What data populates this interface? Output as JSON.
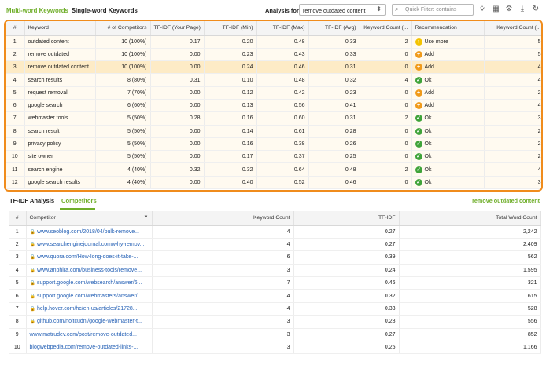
{
  "topbar": {
    "tab_multi": "Multi-word Keywords",
    "tab_single": "Single-word Keywords",
    "analysis_label": "Analysis for:",
    "analysis_value": "remove outdated content",
    "filter_placeholder": "Quick Filter: contains",
    "icons": [
      "filter-icon",
      "grid-icon",
      "gear-icon",
      "download-icon",
      "refresh-icon"
    ]
  },
  "keywords_table": {
    "columns": [
      "#",
      "Keyword",
      "# of Competitors",
      "TF-IDF (Your Page)",
      "TF-IDF (Min)",
      "TF-IDF (Max)",
      "TF-IDF (Avg)",
      "Keyword Count (...",
      "Recommendation",
      "Keyword Count (..."
    ],
    "rows": [
      {
        "n": "1",
        "keyword": "outdated content",
        "competitors": "10 (100%)",
        "your": "0.17",
        "min": "0.20",
        "max": "0.48",
        "avg": "0.33",
        "kc": "2",
        "rec": "Use more",
        "rec_type": "more",
        "kc2": "5"
      },
      {
        "n": "2",
        "keyword": "remove outdated",
        "competitors": "10 (100%)",
        "your": "0.00",
        "min": "0.23",
        "max": "0.43",
        "avg": "0.33",
        "kc": "0",
        "rec": "Add",
        "rec_type": "add",
        "kc2": "5"
      },
      {
        "n": "3",
        "keyword": "remove outdated content",
        "competitors": "10 (100%)",
        "your": "0.00",
        "min": "0.24",
        "max": "0.46",
        "avg": "0.31",
        "kc": "0",
        "rec": "Add",
        "rec_type": "add",
        "kc2": "4"
      },
      {
        "n": "4",
        "keyword": "search results",
        "competitors": "8 (80%)",
        "your": "0.31",
        "min": "0.10",
        "max": "0.48",
        "avg": "0.32",
        "kc": "4",
        "rec": "Ok",
        "rec_type": "ok",
        "kc2": "4"
      },
      {
        "n": "5",
        "keyword": "request removal",
        "competitors": "7 (70%)",
        "your": "0.00",
        "min": "0.12",
        "max": "0.42",
        "avg": "0.23",
        "kc": "0",
        "rec": "Add",
        "rec_type": "add",
        "kc2": "2"
      },
      {
        "n": "6",
        "keyword": "google search",
        "competitors": "6 (60%)",
        "your": "0.00",
        "min": "0.13",
        "max": "0.56",
        "avg": "0.41",
        "kc": "0",
        "rec": "Add",
        "rec_type": "add",
        "kc2": "4"
      },
      {
        "n": "7",
        "keyword": "webmaster tools",
        "competitors": "5 (50%)",
        "your": "0.28",
        "min": "0.16",
        "max": "0.60",
        "avg": "0.31",
        "kc": "2",
        "rec": "Ok",
        "rec_type": "ok",
        "kc2": "3"
      },
      {
        "n": "8",
        "keyword": "search result",
        "competitors": "5 (50%)",
        "your": "0.00",
        "min": "0.14",
        "max": "0.61",
        "avg": "0.28",
        "kc": "0",
        "rec": "Ok",
        "rec_type": "ok",
        "kc2": "2"
      },
      {
        "n": "9",
        "keyword": "privacy policy",
        "competitors": "5 (50%)",
        "your": "0.00",
        "min": "0.16",
        "max": "0.38",
        "avg": "0.26",
        "kc": "0",
        "rec": "Ok",
        "rec_type": "ok",
        "kc2": "2"
      },
      {
        "n": "10",
        "keyword": "site owner",
        "competitors": "5 (50%)",
        "your": "0.00",
        "min": "0.17",
        "max": "0.37",
        "avg": "0.25",
        "kc": "0",
        "rec": "Ok",
        "rec_type": "ok",
        "kc2": "2"
      },
      {
        "n": "11",
        "keyword": "search engine",
        "competitors": "4 (40%)",
        "your": "0.32",
        "min": "0.32",
        "max": "0.64",
        "avg": "0.48",
        "kc": "2",
        "rec": "Ok",
        "rec_type": "ok",
        "kc2": "4"
      },
      {
        "n": "12",
        "keyword": "google search results",
        "competitors": "4 (40%)",
        "your": "0.00",
        "min": "0.40",
        "max": "0.52",
        "avg": "0.46",
        "kc": "0",
        "rec": "Ok",
        "rec_type": "ok",
        "kc2": "3"
      }
    ]
  },
  "lower": {
    "tab_tfidf": "TF-IDF Analysis",
    "tab_competitors": "Competitors",
    "keyword": "remove outdated content",
    "columns": [
      "#",
      "Competitor",
      "Keyword Count",
      "TF-IDF",
      "Total Word Count"
    ],
    "rows": [
      {
        "n": "1",
        "url": "www.seoblog.com/2018/04/bulk-remove...",
        "secure": true,
        "kc": "4",
        "tfidf": "0.27",
        "twc": "2,242"
      },
      {
        "n": "2",
        "url": "www.searchenginejournal.com/why-remov...",
        "secure": true,
        "kc": "4",
        "tfidf": "0.27",
        "twc": "2,409"
      },
      {
        "n": "3",
        "url": "www.quora.com/How-long-does-it-take-...",
        "secure": true,
        "kc": "6",
        "tfidf": "0.39",
        "twc": "562"
      },
      {
        "n": "4",
        "url": "www.anphira.com/business-tools/remove...",
        "secure": true,
        "kc": "3",
        "tfidf": "0.24",
        "twc": "1,595"
      },
      {
        "n": "5",
        "url": "support.google.com/websearch/answer/6...",
        "secure": true,
        "kc": "7",
        "tfidf": "0.46",
        "twc": "321"
      },
      {
        "n": "6",
        "url": "support.google.com/webmasters/answer/...",
        "secure": true,
        "kc": "4",
        "tfidf": "0.32",
        "twc": "615"
      },
      {
        "n": "7",
        "url": "help.hover.com/hc/en-us/articles/21728...",
        "secure": true,
        "kc": "4",
        "tfidf": "0.33",
        "twc": "528"
      },
      {
        "n": "8",
        "url": "github.com/noitcudni/google-webmaster-t...",
        "secure": true,
        "kc": "3",
        "tfidf": "0.28",
        "twc": "556"
      },
      {
        "n": "9",
        "url": "www.matrudev.com/post/remove-outdated...",
        "secure": false,
        "kc": "3",
        "tfidf": "0.27",
        "twc": "852"
      },
      {
        "n": "10",
        "url": "blogwebpedia.com/remove-outdated-links-...",
        "secure": false,
        "kc": "3",
        "tfidf": "0.25",
        "twc": "1,166"
      }
    ]
  },
  "colors": {
    "accent_green": "#6fae2a",
    "highlight_orange": "#f08c1c",
    "ok": "#3fa33a",
    "add": "#f09a1a",
    "more": "#f3c300"
  }
}
